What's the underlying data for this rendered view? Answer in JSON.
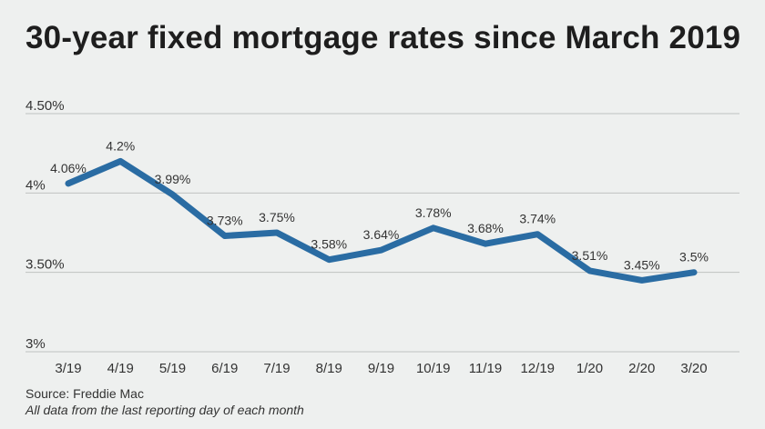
{
  "chart_data": {
    "type": "line",
    "title": "30-year fixed mortgage rates since March 2019",
    "categories": [
      "3/19",
      "4/19",
      "5/19",
      "6/19",
      "7/19",
      "8/19",
      "9/19",
      "10/19",
      "11/19",
      "12/19",
      "1/20",
      "2/20",
      "3/20"
    ],
    "series": [
      {
        "values": [
          4.06,
          4.2,
          3.99,
          3.73,
          3.75,
          3.58,
          3.64,
          3.78,
          3.68,
          3.74,
          3.51,
          3.45,
          3.5
        ],
        "data_labels": [
          "4.06%",
          "4.2%",
          "3.99%",
          "3.73%",
          "3.75%",
          "3.58%",
          "3.64%",
          "3.78%",
          "3.68%",
          "3.74%",
          "3.51%",
          "3.45%",
          "3.5%"
        ]
      }
    ],
    "yticks": [
      3,
      3.5,
      4,
      4.5
    ],
    "ytick_labels": [
      "3%",
      "3.50%",
      "4%",
      "4.50%"
    ],
    "ylim": [
      3,
      4.5
    ],
    "xlabel": "",
    "ylabel": "",
    "grid": true,
    "legend": "none",
    "line_color": "#2a6ca3",
    "gridline_color": "#bfc2c1"
  },
  "footer": {
    "source": "Source: Freddie Mac",
    "note": "All data from the last reporting day of each month"
  }
}
